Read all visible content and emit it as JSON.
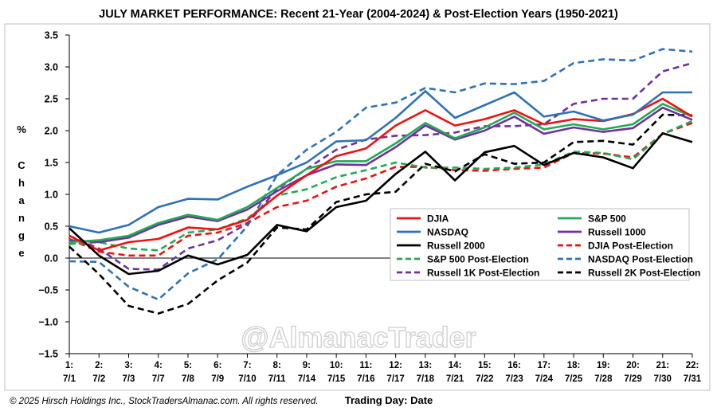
{
  "chart_data": {
    "type": "line",
    "title": "JULY MARKET PERFORMANCE: Recent 21-Year (2004-2024) & Post-Election Years (1950-2021)",
    "xlabel": "Trading Day: Date",
    "ylabel_lines": [
      "%",
      "C",
      "h",
      "a",
      "n",
      "g",
      "e"
    ],
    "footer": "© 2025 Hirsch Holdings Inc., StockTradersAlmanac.com. All rights reserved.",
    "watermark": "@AlmanacTrader",
    "ylim": [
      -1.5,
      3.5
    ],
    "ytick_labels": [
      "3.5",
      "3.0",
      "2.5",
      "2.0",
      "1.5",
      "1.0",
      "0.5",
      "0.0",
      "−0.5",
      "−1.0",
      "−1.5"
    ],
    "grid": false,
    "legend_position": "right",
    "x_day_labels": [
      "1:",
      "2:",
      "3:",
      "4:",
      "5:",
      "6:",
      "7:",
      "8:",
      "9:",
      "10:",
      "11:",
      "12:",
      "13:",
      "14:",
      "15:",
      "16:",
      "17:",
      "18:",
      "19:",
      "20:",
      "21:",
      "22:"
    ],
    "x_date_labels": [
      "7/1",
      "7/2",
      "7/3",
      "7/7",
      "7/8",
      "7/9",
      "7/10",
      "7/11",
      "7/14",
      "7/15",
      "7/16",
      "7/17",
      "7/18",
      "7/21",
      "7/22",
      "7/23",
      "7/24",
      "7/25",
      "7/28",
      "7/29",
      "7/30",
      "7/31"
    ],
    "series": [
      {
        "name": "DJIA",
        "color": "#ee1111",
        "style": "solid",
        "values": [
          0.35,
          0.12,
          0.25,
          0.3,
          0.48,
          0.45,
          0.6,
          0.98,
          1.3,
          1.6,
          1.72,
          2.08,
          2.32,
          2.08,
          2.18,
          2.32,
          2.1,
          2.18,
          2.15,
          2.26,
          2.5,
          2.22
        ]
      },
      {
        "name": "S&P 500",
        "color": "#22aa55",
        "style": "solid",
        "values": [
          0.25,
          0.28,
          0.35,
          0.55,
          0.68,
          0.6,
          0.8,
          1.1,
          1.4,
          1.52,
          1.52,
          1.8,
          2.12,
          1.88,
          2.05,
          2.28,
          2.02,
          2.1,
          2.02,
          2.1,
          2.42,
          2.22
        ]
      },
      {
        "name": "NASDAQ",
        "color": "#2e72b6",
        "style": "solid",
        "values": [
          0.5,
          0.4,
          0.52,
          0.8,
          0.93,
          0.92,
          1.12,
          1.3,
          1.5,
          1.83,
          1.85,
          2.2,
          2.62,
          2.2,
          2.4,
          2.6,
          2.22,
          2.3,
          2.16,
          2.25,
          2.6,
          2.6
        ]
      },
      {
        "name": "Russell 1000",
        "color": "#7030a0",
        "style": "solid",
        "values": [
          0.28,
          0.25,
          0.32,
          0.52,
          0.65,
          0.58,
          0.76,
          1.05,
          1.3,
          1.47,
          1.46,
          1.74,
          2.08,
          1.86,
          2.0,
          2.22,
          1.95,
          2.05,
          1.98,
          2.04,
          2.36,
          2.17
        ]
      },
      {
        "name": "Russell 2000",
        "color": "#000000",
        "style": "solid",
        "values": [
          0.47,
          0.04,
          -0.25,
          -0.2,
          0.04,
          -0.1,
          0.05,
          0.52,
          0.42,
          0.8,
          0.9,
          1.32,
          1.67,
          1.22,
          1.66,
          1.76,
          1.46,
          1.65,
          1.58,
          1.41,
          1.96,
          1.82
        ]
      },
      {
        "name": "DJIA Post-Election",
        "color": "#ee1111",
        "style": "dashed",
        "values": [
          0.3,
          0.1,
          0.04,
          0.04,
          0.35,
          0.4,
          0.55,
          0.8,
          0.9,
          1.12,
          1.25,
          1.43,
          1.43,
          1.38,
          1.37,
          1.4,
          1.42,
          1.65,
          1.64,
          1.58,
          1.95,
          2.12
        ]
      },
      {
        "name": "S&P 500 Post-Election",
        "color": "#22aa55",
        "style": "dashed",
        "values": [
          0.22,
          0.25,
          0.15,
          0.12,
          0.4,
          0.45,
          0.62,
          0.98,
          1.08,
          1.27,
          1.38,
          1.5,
          1.42,
          1.42,
          1.4,
          1.42,
          1.47,
          1.67,
          1.65,
          1.55,
          1.95,
          2.15
        ]
      },
      {
        "name": "NASDAQ Post-Election",
        "color": "#2e72b6",
        "style": "dashed",
        "values": [
          -0.05,
          -0.06,
          -0.45,
          -0.65,
          -0.24,
          -0.02,
          0.5,
          1.3,
          1.7,
          1.98,
          2.36,
          2.44,
          2.67,
          2.6,
          2.74,
          2.73,
          2.78,
          3.06,
          3.12,
          3.1,
          3.28,
          3.24
        ]
      },
      {
        "name": "Russell 1K Post-Election",
        "color": "#7030a0",
        "style": "dashed",
        "values": [
          0.35,
          0.15,
          -0.17,
          -0.18,
          0.15,
          0.28,
          0.54,
          1.08,
          1.4,
          1.7,
          1.86,
          1.92,
          1.93,
          1.97,
          2.07,
          2.07,
          2.1,
          2.42,
          2.5,
          2.5,
          2.93,
          3.06
        ]
      },
      {
        "name": "Russell 2K Post-Election",
        "color": "#000000",
        "style": "dashed",
        "values": [
          0.18,
          -0.25,
          -0.75,
          -0.87,
          -0.72,
          -0.35,
          -0.07,
          0.48,
          0.45,
          0.88,
          1.0,
          1.04,
          1.48,
          1.36,
          1.63,
          1.48,
          1.5,
          1.82,
          1.84,
          1.78,
          2.25,
          2.24
        ]
      }
    ],
    "legend_order": [
      0,
      1,
      2,
      3,
      4,
      5,
      6,
      7,
      8,
      9
    ]
  }
}
